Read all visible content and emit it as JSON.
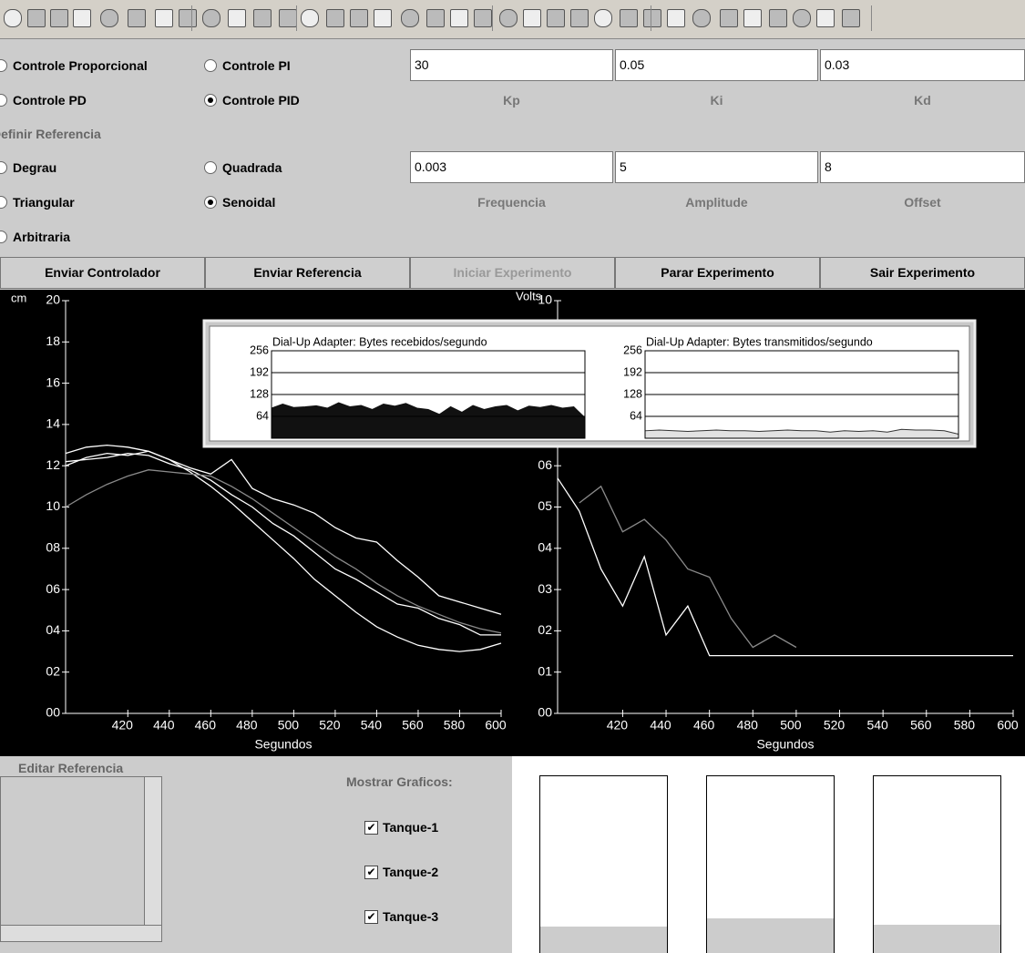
{
  "controller": {
    "modes": [
      {
        "label": "Controle Proporcional",
        "checked": false
      },
      {
        "label": "Controle PI",
        "checked": false
      },
      {
        "label": "Controle PD",
        "checked": false
      },
      {
        "label": "Controle PID",
        "checked": true
      }
    ],
    "params": [
      {
        "name": "Kp",
        "value": 30
      },
      {
        "name": "Ki",
        "value": 0.05
      },
      {
        "name": "Kd",
        "value": 0.03
      }
    ]
  },
  "reference": {
    "title": "Definir Referencia",
    "types": [
      {
        "label": "Degrau",
        "checked": false
      },
      {
        "label": "Quadrada",
        "checked": false
      },
      {
        "label": "Triangular",
        "checked": false
      },
      {
        "label": "Senoidal",
        "checked": true
      },
      {
        "label": "Arbitraria",
        "checked": false
      }
    ],
    "params": [
      {
        "name": "Frequencia",
        "value": 0.003
      },
      {
        "name": "Amplitude",
        "value": 5
      },
      {
        "name": "Offset",
        "value": 8
      }
    ]
  },
  "buttons": [
    {
      "label": "Enviar Controlador",
      "enabled": true
    },
    {
      "label": "Enviar Referencia",
      "enabled": true
    },
    {
      "label": "Iniciar Experimento",
      "enabled": false
    },
    {
      "label": "Parar Experimento",
      "enabled": true
    },
    {
      "label": "Sair Experimento",
      "enabled": true
    }
  ],
  "chart_data": [
    {
      "type": "line",
      "y_label": "cm",
      "x_label": "Segundos",
      "x": [
        390,
        400,
        410,
        420,
        430,
        440,
        450,
        460,
        470,
        480,
        490,
        500,
        510,
        520,
        530,
        540,
        550,
        560,
        570,
        580,
        590,
        600
      ],
      "xlim": [
        390,
        600
      ],
      "xticks": [
        420,
        440,
        460,
        480,
        500,
        520,
        540,
        560,
        580,
        600
      ],
      "ylim": [
        0,
        20
      ],
      "yticks": [
        20,
        18,
        16,
        14,
        12,
        10,
        {
          "value": 8,
          "label": "08"
        },
        {
          "value": 6,
          "label": "06"
        },
        {
          "value": 4,
          "label": "04"
        },
        {
          "value": 2,
          "label": "02"
        },
        {
          "value": 0,
          "label": "00"
        }
      ],
      "series": [
        {
          "color": "#ffffff",
          "values": [
            12.6,
            12.9,
            13.0,
            12.9,
            12.7,
            12.3,
            11.7,
            11.0,
            10.2,
            9.3,
            8.4,
            7.5,
            6.5,
            5.7,
            4.9,
            4.2,
            3.7,
            3.3,
            3.1,
            3.0,
            3.1,
            3.4
          ]
        },
        {
          "color": "#ffffff",
          "values": [
            12.0,
            12.4,
            12.6,
            12.5,
            12.7,
            12.3,
            11.9,
            11.6,
            12.3,
            10.9,
            10.4,
            10.1,
            9.7,
            9.0,
            8.5,
            8.3,
            7.4,
            6.6,
            5.7,
            5.4,
            5.1,
            4.8
          ]
        },
        {
          "color": "#ffffff",
          "values": [
            12.2,
            12.3,
            12.4,
            12.6,
            12.5,
            12.1,
            11.8,
            11.3,
            10.6,
            10.0,
            9.2,
            8.6,
            7.8,
            7.0,
            6.5,
            5.9,
            5.3,
            5.1,
            4.6,
            4.3,
            3.8,
            3.8
          ]
        },
        {
          "color": "#8a8a8a",
          "values": [
            10.0,
            10.6,
            11.1,
            11.5,
            11.8,
            11.7,
            11.6,
            11.5,
            11.0,
            10.4,
            9.7,
            9.0,
            8.3,
            7.6,
            7.0,
            6.3,
            5.7,
            5.2,
            4.8,
            4.4,
            4.1,
            3.9
          ]
        }
      ]
    },
    {
      "type": "line",
      "y_label": "Volts",
      "x_label": "Segundos",
      "x": [
        390,
        400,
        410,
        420,
        430,
        440,
        450,
        460,
        470,
        480,
        490,
        500,
        510,
        520,
        530,
        540,
        550,
        560,
        570,
        580,
        590,
        600
      ],
      "xlim": [
        390,
        600
      ],
      "xticks": [
        420,
        440,
        460,
        480,
        500,
        520,
        540,
        560,
        580,
        600
      ],
      "ylim": [
        0,
        10
      ],
      "yticks": [
        10,
        {
          "value": 6,
          "label": "06"
        },
        {
          "value": 5,
          "label": "05"
        },
        {
          "value": 4,
          "label": "04"
        },
        {
          "value": 3,
          "label": "03"
        },
        {
          "value": 2,
          "label": "02"
        },
        {
          "value": 1,
          "label": "01"
        },
        {
          "value": 0,
          "label": "00"
        }
      ],
      "series": [
        {
          "color": "#ffffff",
          "values": [
            5.7,
            4.9,
            3.5,
            2.6,
            3.8,
            1.9,
            2.6,
            1.4,
            1.4,
            1.4,
            1.4,
            1.4,
            1.4,
            1.4,
            1.4,
            1.4,
            1.4,
            1.4,
            1.4,
            1.4,
            1.4,
            1.4
          ]
        },
        {
          "color": "#8a8a8a",
          "values": [
            null,
            5.1,
            5.5,
            4.4,
            4.7,
            4.2,
            3.5,
            3.3,
            2.3,
            1.6,
            1.9,
            1.6,
            null,
            null,
            null,
            null,
            null,
            null,
            null,
            null,
            null,
            null
          ]
        }
      ]
    },
    {
      "type": "area",
      "title": "Dial-Up Adapter: Bytes recebidos/segundo",
      "ylim": [
        0,
        256
      ],
      "yticks": [
        256,
        192,
        128,
        64
      ],
      "color": "#111111",
      "stroke": "#111111",
      "values": [
        88,
        100,
        90,
        92,
        95,
        88,
        104,
        92,
        96,
        84,
        100,
        94,
        102,
        88,
        84,
        70,
        92,
        76,
        96,
        84,
        92,
        96,
        80,
        94,
        90,
        96,
        88,
        92,
        60
      ]
    },
    {
      "type": "area",
      "title": "Dial-Up Adapter: Bytes transmitidos/segundo",
      "ylim": [
        0,
        256
      ],
      "yticks": [
        256,
        192,
        128,
        64
      ],
      "color": "#e2e2e2",
      "stroke": "#333333",
      "values": [
        22,
        24,
        22,
        20,
        22,
        24,
        22,
        22,
        20,
        22,
        24,
        22,
        22,
        18,
        22,
        20,
        22,
        18,
        26,
        24,
        24,
        22,
        12
      ]
    }
  ],
  "editor": {
    "title": "Editar Referencia"
  },
  "display": {
    "title": "Mostrar Graficos:",
    "options": [
      {
        "label": "Tanque-1",
        "checked": true
      },
      {
        "label": "Tanque-2",
        "checked": true
      },
      {
        "label": "Tanque-3",
        "checked": true
      }
    ]
  },
  "tanks": {
    "lim": [
      0,
      100
    ],
    "levels": [
      15,
      19.5,
      16
    ]
  }
}
